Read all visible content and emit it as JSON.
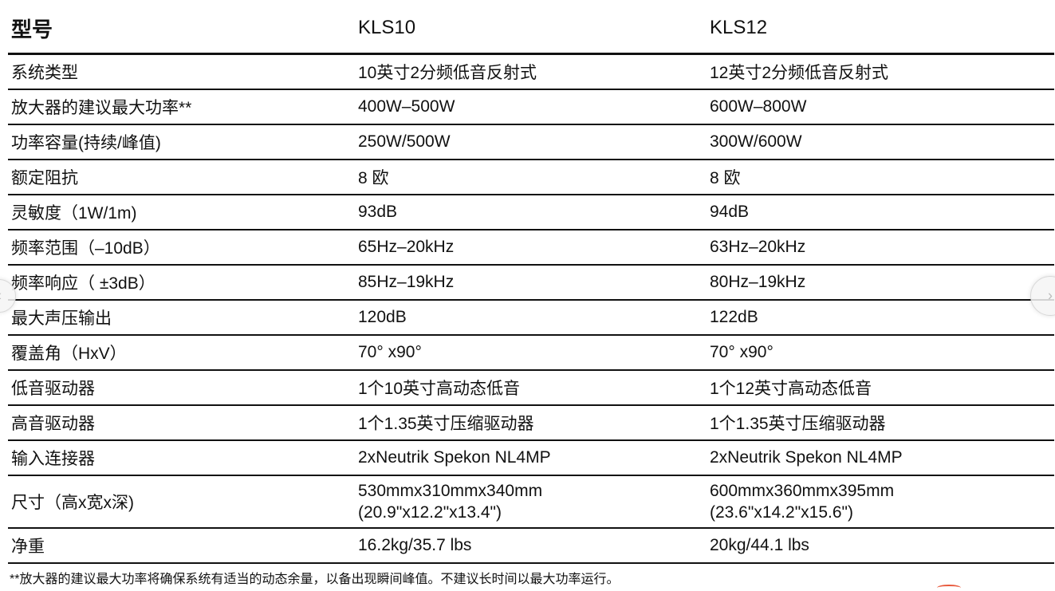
{
  "table": {
    "header": {
      "label": "型号",
      "col1": "KLS10",
      "col2": "KLS12"
    },
    "rows": [
      {
        "label": "系统类型",
        "v1": "10英寸2分频低音反射式",
        "v2": "12英寸2分频低音反射式"
      },
      {
        "label": "放大器的建议最大功率**",
        "v1": "400W–500W",
        "v2": "600W–800W"
      },
      {
        "label": "功率容量(持续/峰值)",
        "v1": "250W/500W",
        "v2": "300W/600W"
      },
      {
        "label": "额定阻抗",
        "v1": "8 欧",
        "v2": "8 欧"
      },
      {
        "label": "灵敏度（1W/1m)",
        "v1": "93dB",
        "v2": "94dB"
      },
      {
        "label": "频率范围（–10dB）",
        "v1": "65Hz–20kHz",
        "v2": "63Hz–20kHz"
      },
      {
        "label": "频率响应（ ±3dB）",
        "v1": "85Hz–19kHz",
        "v2": "80Hz–19kHz"
      },
      {
        "label": "最大声压输出",
        "v1": "120dB",
        "v2": "122dB"
      },
      {
        "label": "覆盖角（HxV）",
        "v1": "70° x90°",
        "v2": "70° x90°"
      },
      {
        "label": "低音驱动器",
        "v1": "1个10英寸高动态低音",
        "v2": "1个12英寸高动态低音"
      },
      {
        "label": "高音驱动器",
        "v1": "1个1.35英寸压缩驱动器",
        "v2": "1个1.35英寸压缩驱动器"
      },
      {
        "label": "输入连接器",
        "v1": "2xNeutrik Spekon NL4MP",
        "v2": "2xNeutrik Spekon NL4MP"
      },
      {
        "label": "尺寸（高x宽x深)",
        "v1a": "530mmx310mmx340mm",
        "v1b": "(20.9\"x12.2\"x13.4\")",
        "v2a": "600mmx360mmx395mm",
        "v2b": "(23.6\"x14.2\"x15.6\")"
      },
      {
        "label": "净重",
        "v1": "16.2kg/35.7 lbs",
        "v2": "20kg/44.1 lbs"
      }
    ]
  },
  "footnote": "**放大器的建议最大功率将确保系统有适当的动态余量，以备出现瞬间峰值。不建议长时间以最大功率运行。",
  "icons": {
    "prev": "chevron-left-icon",
    "next": "chevron-right-icon"
  }
}
